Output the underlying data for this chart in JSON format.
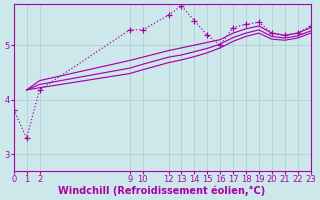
{
  "background_color": "#cce8ea",
  "line_color": "#aa00aa",
  "grid_color": "#aacccc",
  "xlabel": "Windchill (Refroidissement éolien,°C)",
  "xlabel_fontsize": 7.0,
  "tick_color": "#aa00aa",
  "tick_fontsize": 6.0,
  "x_ticks": [
    0,
    1,
    2,
    9,
    10,
    12,
    13,
    14,
    15,
    16,
    17,
    18,
    19,
    20,
    21,
    22,
    23
  ],
  "ylim": [
    2.7,
    5.75
  ],
  "xlim": [
    0,
    23
  ],
  "yticks": [
    3,
    4,
    5
  ],
  "dotted_x": [
    0,
    1,
    2,
    9,
    10,
    12,
    13,
    14,
    15,
    16,
    17,
    18,
    19,
    20,
    21,
    22,
    23
  ],
  "dotted_y": [
    3.82,
    3.3,
    4.18,
    5.28,
    5.28,
    5.55,
    5.72,
    5.45,
    5.18,
    5.0,
    5.32,
    5.38,
    5.42,
    5.22,
    5.18,
    5.22,
    5.35
  ],
  "solid1_x": [
    1,
    2,
    9,
    10,
    12,
    13,
    14,
    15,
    16,
    17,
    18,
    19,
    20,
    21,
    22,
    23
  ],
  "solid1_y": [
    4.18,
    4.35,
    4.72,
    4.78,
    4.9,
    4.95,
    5.0,
    5.05,
    5.1,
    5.22,
    5.3,
    5.35,
    5.22,
    5.18,
    5.22,
    5.32
  ],
  "solid2_x": [
    1,
    2,
    9,
    10,
    12,
    13,
    14,
    15,
    16,
    17,
    18,
    19,
    20,
    21,
    22,
    23
  ],
  "solid2_y": [
    4.18,
    4.28,
    4.58,
    4.65,
    4.78,
    4.82,
    4.88,
    4.94,
    5.02,
    5.14,
    5.22,
    5.28,
    5.16,
    5.13,
    5.17,
    5.26
  ],
  "solid3_x": [
    1,
    2,
    9,
    10,
    12,
    13,
    14,
    15,
    16,
    17,
    18,
    19,
    20,
    21,
    22,
    23
  ],
  "solid3_y": [
    4.18,
    4.22,
    4.48,
    4.55,
    4.68,
    4.73,
    4.79,
    4.86,
    4.95,
    5.07,
    5.16,
    5.22,
    5.11,
    5.09,
    5.13,
    5.22
  ]
}
